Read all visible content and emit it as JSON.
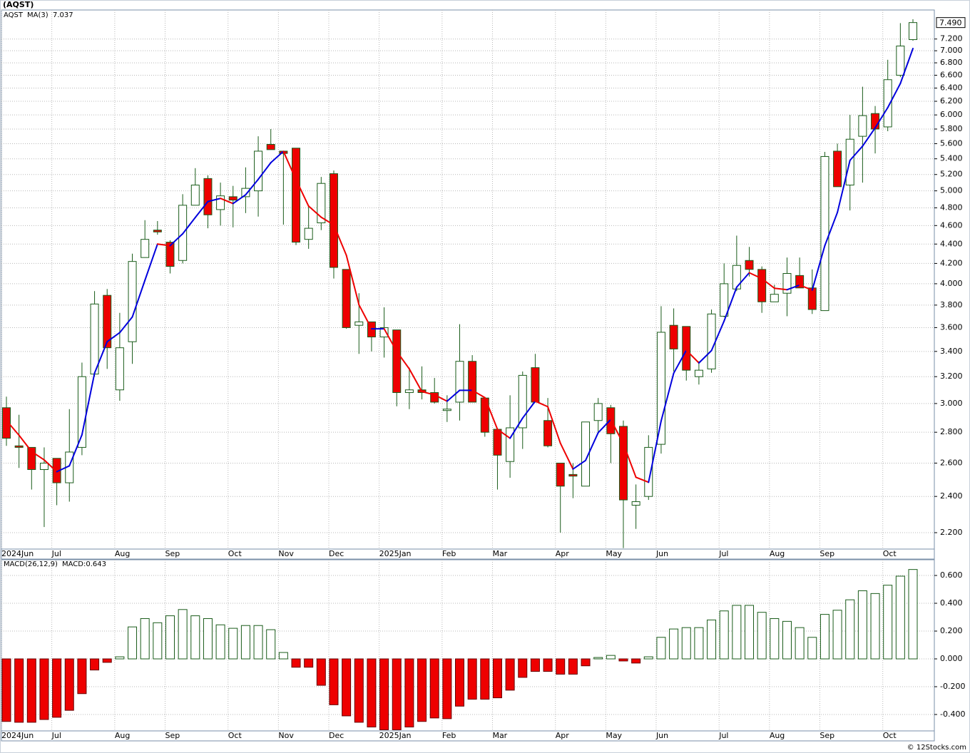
{
  "chart_data": [
    {
      "type": "candlestick",
      "title": "(AQST)",
      "symbol": "AQST",
      "symbol_color": "#006400",
      "log_scale": true,
      "grid": true,
      "up_color": "#ffffff",
      "down_color": "#ee0000",
      "outline_color": "#1a5c1a",
      "categories": [
        "2024Jun",
        null,
        null,
        null,
        "Jul",
        null,
        null,
        null,
        null,
        "Aug",
        null,
        null,
        null,
        "Sep",
        null,
        null,
        null,
        null,
        "Oct",
        null,
        null,
        null,
        "Nov",
        null,
        null,
        null,
        "Dec",
        null,
        null,
        null,
        "2025Jan",
        null,
        null,
        null,
        null,
        "Feb",
        null,
        null,
        null,
        "Mar",
        null,
        null,
        null,
        null,
        "Apr",
        null,
        null,
        null,
        "May",
        null,
        null,
        null,
        "Jun",
        null,
        null,
        null,
        null,
        "Jul",
        null,
        null,
        null,
        "Aug",
        null,
        null,
        null,
        "Sep",
        null,
        null,
        null,
        null,
        "Oct",
        null,
        null
      ],
      "open": [
        2.97,
        2.71,
        2.7,
        2.56,
        2.63,
        2.48,
        2.7,
        3.22,
        3.89,
        3.1,
        3.48,
        4.26,
        4.55,
        4.42,
        4.23,
        4.83,
        5.15,
        4.78,
        4.93,
        4.93,
        5.0,
        5.59,
        5.5,
        5.54,
        4.45,
        4.63,
        5.21,
        4.14,
        3.62,
        3.65,
        3.52,
        3.58,
        3.08,
        3.1,
        3.08,
        2.95,
        3.01,
        3.32,
        3.04,
        2.82,
        2.61,
        2.83,
        3.27,
        2.88,
        2.6,
        2.53,
        2.46,
        2.88,
        2.97,
        2.84,
        2.35,
        2.4,
        2.72,
        3.62,
        3.61,
        3.2,
        3.26,
        3.7,
        3.95,
        4.23,
        4.14,
        3.83,
        3.91,
        4.08,
        3.96,
        3.75,
        5.5,
        5.07,
        5.7,
        6.02,
        5.83,
        6.6,
        7.19
      ],
      "high": [
        3.05,
        2.92,
        2.7,
        2.7,
        2.63,
        2.96,
        3.31,
        3.93,
        3.95,
        3.73,
        4.3,
        4.66,
        4.65,
        4.44,
        4.96,
        5.28,
        5.19,
        5.1,
        5.06,
        5.29,
        5.7,
        5.8,
        5.5,
        5.54,
        4.83,
        5.17,
        5.25,
        4.14,
        3.91,
        3.65,
        3.78,
        3.58,
        3.27,
        3.28,
        3.19,
        3.06,
        3.63,
        3.37,
        3.04,
        2.82,
        3.06,
        3.24,
        3.38,
        3.04,
        2.6,
        2.6,
        2.87,
        3.04,
        2.99,
        2.88,
        2.47,
        2.78,
        3.79,
        3.77,
        3.61,
        3.32,
        3.76,
        4.2,
        4.49,
        4.37,
        4.17,
        3.99,
        4.26,
        4.26,
        4.14,
        5.49,
        5.6,
        6.0,
        6.42,
        6.13,
        6.85,
        7.48,
        7.55
      ],
      "low": [
        2.71,
        2.57,
        2.44,
        2.23,
        2.35,
        2.37,
        2.65,
        3.2,
        3.26,
        3.02,
        3.3,
        4.26,
        4.5,
        4.1,
        4.2,
        4.83,
        4.57,
        4.6,
        4.58,
        4.74,
        4.7,
        5.52,
        4.61,
        4.39,
        4.35,
        4.55,
        4.05,
        3.59,
        3.38,
        3.4,
        3.35,
        2.98,
        2.96,
        3.03,
        3.0,
        2.87,
        2.88,
        3.01,
        2.77,
        2.44,
        2.51,
        2.69,
        3.01,
        2.7,
        2.2,
        2.39,
        2.46,
        2.79,
        2.6,
        2.12,
        2.22,
        2.38,
        2.66,
        3.24,
        3.17,
        3.14,
        3.23,
        3.69,
        3.93,
        4.07,
        3.73,
        3.83,
        3.7,
        3.96,
        3.72,
        3.75,
        5.05,
        4.77,
        5.1,
        5.47,
        5.77,
        6.57,
        7.17
      ],
      "close": [
        2.76,
        2.7,
        2.56,
        2.6,
        2.48,
        2.67,
        3.2,
        3.81,
        3.43,
        3.43,
        4.22,
        4.45,
        4.53,
        4.17,
        4.83,
        5.07,
        4.72,
        4.94,
        4.89,
        5.03,
        5.5,
        5.52,
        5.47,
        4.42,
        4.57,
        5.09,
        4.16,
        3.6,
        3.65,
        3.52,
        3.6,
        3.08,
        3.1,
        3.08,
        3.01,
        2.96,
        3.32,
        3.01,
        2.8,
        2.65,
        2.83,
        3.21,
        3.01,
        2.71,
        2.46,
        2.52,
        2.87,
        3.0,
        2.79,
        2.38,
        2.37,
        2.7,
        3.56,
        3.42,
        3.25,
        3.25,
        3.72,
        4.0,
        4.18,
        4.14,
        3.83,
        3.9,
        4.1,
        3.96,
        3.76,
        5.43,
        5.05,
        5.66,
        5.99,
        5.8,
        6.53,
        7.08,
        7.49
      ],
      "close_label": "7.490",
      "ma": {
        "name": "MA(3)",
        "color": "#0000dd",
        "down_color": "#ee0000",
        "value_label": "7.037",
        "values": [
          2.88,
          2.78,
          2.673,
          2.62,
          2.547,
          2.583,
          2.783,
          3.227,
          3.48,
          3.557,
          3.693,
          4.033,
          4.4,
          4.383,
          4.51,
          4.69,
          4.873,
          4.91,
          4.85,
          4.953,
          5.14,
          5.35,
          5.497,
          5.137,
          4.82,
          4.693,
          4.607,
          4.283,
          3.803,
          3.59,
          3.59,
          3.4,
          3.26,
          3.087,
          3.063,
          3.017,
          3.097,
          3.097,
          3.043,
          2.82,
          2.76,
          2.897,
          3.017,
          2.977,
          2.727,
          2.563,
          2.617,
          2.797,
          2.887,
          2.723,
          2.513,
          2.483,
          2.877,
          3.227,
          3.41,
          3.307,
          3.407,
          3.657,
          3.967,
          4.107,
          4.05,
          3.957,
          3.943,
          3.987,
          3.94,
          4.383,
          4.747,
          5.38,
          5.567,
          5.817,
          6.107,
          6.47,
          7.037
        ]
      },
      "ylim": [
        2.115,
        7.72
      ],
      "yticks": [
        {
          "value": 2.2,
          "label": "2.200"
        },
        {
          "value": 2.4,
          "label": "2.400"
        },
        {
          "value": 2.6,
          "label": "2.600"
        },
        {
          "value": 2.8,
          "label": "2.800"
        },
        {
          "value": 3.0,
          "label": "3.000"
        },
        {
          "value": 3.2,
          "label": "3.200"
        },
        {
          "value": 3.4,
          "label": "3.400"
        },
        {
          "value": 3.6,
          "label": "3.600"
        },
        {
          "value": 3.8,
          "label": "3.800"
        },
        {
          "value": 4.0,
          "label": "4.000"
        },
        {
          "value": 4.2,
          "label": "4.200"
        },
        {
          "value": 4.4,
          "label": "4.400"
        },
        {
          "value": 4.6,
          "label": "4.600"
        },
        {
          "value": 4.8,
          "label": "4.800"
        },
        {
          "value": 5.0,
          "label": "5.000"
        },
        {
          "value": 5.2,
          "label": "5.200"
        },
        {
          "value": 5.4,
          "label": "5.400"
        },
        {
          "value": 5.6,
          "label": "5.600"
        },
        {
          "value": 5.8,
          "label": "5.800"
        },
        {
          "value": 6.0,
          "label": "6.000"
        },
        {
          "value": 6.2,
          "label": "6.200"
        },
        {
          "value": 6.4,
          "label": "6.400"
        },
        {
          "value": 6.6,
          "label": "6.600"
        },
        {
          "value": 6.8,
          "label": "6.800"
        },
        {
          "value": 7.0,
          "label": "7.000"
        },
        {
          "value": 7.2,
          "label": "7.200"
        }
      ]
    },
    {
      "type": "bar",
      "title": "MACD(26,12,9)",
      "value_label": "MACD:0.643",
      "label_color": "#0000cc",
      "grid": true,
      "up_color": "#ffffff",
      "up_stroke": "#1a5c1a",
      "down_color": "#ee0000",
      "down_stroke": "#660000",
      "categories": [
        "2024Jun",
        null,
        null,
        null,
        "Jul",
        null,
        null,
        null,
        null,
        "Aug",
        null,
        null,
        null,
        "Sep",
        null,
        null,
        null,
        null,
        "Oct",
        null,
        null,
        null,
        "Nov",
        null,
        null,
        null,
        "Dec",
        null,
        null,
        null,
        "2025Jan",
        null,
        null,
        null,
        null,
        "Feb",
        null,
        null,
        null,
        "Mar",
        null,
        null,
        null,
        null,
        "Apr",
        null,
        null,
        null,
        "May",
        null,
        null,
        null,
        "Jun",
        null,
        null,
        null,
        null,
        "Jul",
        null,
        null,
        null,
        "Aug",
        null,
        null,
        null,
        "Sep",
        null,
        null,
        null,
        null,
        "Oct",
        null,
        null
      ],
      "values": [
        -0.45,
        -0.456,
        -0.456,
        -0.436,
        -0.42,
        -0.37,
        -0.25,
        -0.08,
        -0.025,
        0.015,
        0.23,
        0.29,
        0.26,
        0.31,
        0.355,
        0.31,
        0.29,
        0.245,
        0.22,
        0.24,
        0.24,
        0.21,
        0.046,
        -0.06,
        -0.06,
        -0.19,
        -0.33,
        -0.41,
        -0.456,
        -0.49,
        -0.51,
        -0.51,
        -0.49,
        -0.45,
        -0.425,
        -0.43,
        -0.34,
        -0.29,
        -0.29,
        -0.28,
        -0.225,
        -0.133,
        -0.09,
        -0.09,
        -0.11,
        -0.11,
        -0.05,
        0.01,
        0.025,
        -0.015,
        -0.03,
        0.015,
        0.155,
        0.215,
        0.225,
        0.225,
        0.28,
        0.345,
        0.385,
        0.385,
        0.335,
        0.29,
        0.27,
        0.225,
        0.155,
        0.32,
        0.35,
        0.425,
        0.49,
        0.47,
        0.53,
        0.595,
        0.643
      ],
      "ylim": [
        -0.518,
        0.713
      ],
      "yticks": [
        {
          "value": -0.4,
          "label": "-0.400"
        },
        {
          "value": -0.2,
          "label": "-0.200"
        },
        {
          "value": 0,
          "label": "0.000"
        },
        {
          "value": 0.2,
          "label": "0.200"
        },
        {
          "value": 0.4,
          "label": "0.400"
        },
        {
          "value": 0.6,
          "label": "0.600"
        }
      ]
    }
  ],
  "footer": "© 12Stocks.com"
}
